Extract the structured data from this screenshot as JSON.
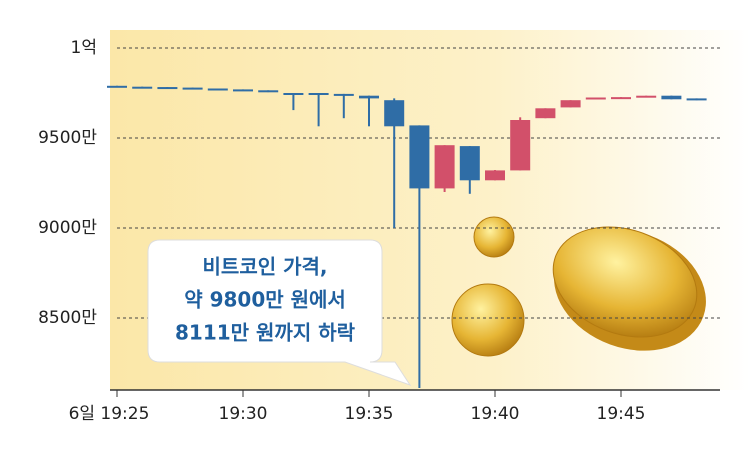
{
  "chart_data": {
    "type": "candlestick",
    "categories": [
      "6일 19:25",
      null,
      null,
      null,
      null,
      "19:30",
      null,
      null,
      null,
      null,
      "19:35",
      null,
      null,
      null,
      null,
      "19:40",
      null,
      null,
      null,
      null,
      "19:45",
      null,
      null,
      null
    ],
    "open": [
      9790,
      9785,
      9783,
      9780,
      9775,
      9770,
      9765,
      9750,
      9750,
      9745,
      9735,
      9710,
      9570,
      9220,
      9455,
      9265,
      9320,
      9610,
      9670,
      9715,
      9722,
      9727,
      9735,
      9720
    ],
    "high": [
      9790,
      9785,
      9783,
      9780,
      9775,
      9770,
      9765,
      9750,
      9750,
      9745,
      9735,
      9720,
      9570,
      9460,
      9455,
      9322,
      9615,
      9665,
      9710,
      9725,
      9727,
      9735,
      9735,
      9720
    ],
    "low": [
      9785,
      9783,
      9780,
      9770,
      9770,
      9765,
      9755,
      9655,
      9565,
      9610,
      9565,
      9000,
      8111,
      9200,
      9190,
      9265,
      9320,
      9610,
      9670,
      9715,
      9722,
      9727,
      9715,
      9710
    ],
    "close": [
      9785,
      9783,
      9780,
      9770,
      9770,
      9765,
      9755,
      9745,
      9740,
      9735,
      9720,
      9565,
      9220,
      9460,
      9265,
      9320,
      9600,
      9665,
      9710,
      9725,
      9727,
      9735,
      9715,
      9710
    ],
    "up_color": "#d2506a",
    "down_color": "#2f6da6",
    "ylim": [
      8100,
      10100
    ],
    "yticks": [
      {
        "value": 10000,
        "label": "1억"
      },
      {
        "value": 9500,
        "label": "9500만"
      },
      {
        "value": 9000,
        "label": "9000만"
      },
      {
        "value": 8500,
        "label": "8500만"
      }
    ],
    "grid": true,
    "annotation": [
      "비트코인 가격,",
      "약 9800만 원에서",
      "8111만 원까지 하락"
    ]
  }
}
